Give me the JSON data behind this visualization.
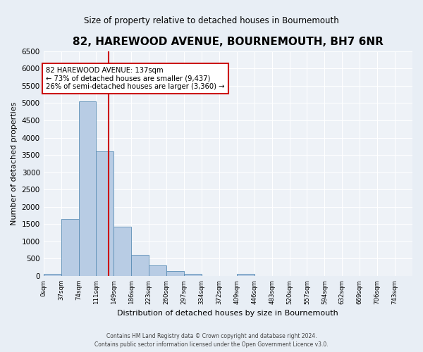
{
  "title": "82, HAREWOOD AVENUE, BOURNEMOUTH, BH7 6NR",
  "subtitle": "Size of property relative to detached houses in Bournemouth",
  "xlabel": "Distribution of detached houses by size in Bournemouth",
  "ylabel": "Number of detached properties",
  "bin_edges": [
    0,
    37,
    74,
    111,
    148,
    185,
    222,
    259,
    296,
    333,
    370,
    407,
    444,
    481,
    518,
    555,
    592,
    629,
    666,
    703,
    740
  ],
  "bin_labels": [
    "0sqm",
    "37sqm",
    "74sqm",
    "111sqm",
    "149sqm",
    "186sqm",
    "223sqm",
    "260sqm",
    "297sqm",
    "334sqm",
    "372sqm",
    "409sqm",
    "446sqm",
    "483sqm",
    "520sqm",
    "557sqm",
    "594sqm",
    "632sqm",
    "669sqm",
    "706sqm",
    "743sqm"
  ],
  "counts": [
    50,
    1650,
    5050,
    3600,
    1430,
    610,
    300,
    150,
    60,
    0,
    0,
    50,
    0,
    0,
    0,
    0,
    0,
    0,
    0,
    0
  ],
  "bar_color": "#b8cce4",
  "bar_edge_color": "#5a8db5",
  "vline_color": "#cc0000",
  "vline_x": 137,
  "annotation_title": "82 HAREWOOD AVENUE: 137sqm",
  "annotation_line1": "← 73% of detached houses are smaller (9,437)",
  "annotation_line2": "26% of semi-detached houses are larger (3,360) →",
  "annotation_box_color": "#cc0000",
  "ylim": [
    0,
    6500
  ],
  "yticks": [
    0,
    500,
    1000,
    1500,
    2000,
    2500,
    3000,
    3500,
    4000,
    4500,
    5000,
    5500,
    6000,
    6500
  ],
  "footer_line1": "Contains HM Land Registry data © Crown copyright and database right 2024.",
  "footer_line2": "Contains public sector information licensed under the Open Government Licence v3.0.",
  "bg_color": "#e8eef5",
  "plot_bg_color": "#eef2f7"
}
